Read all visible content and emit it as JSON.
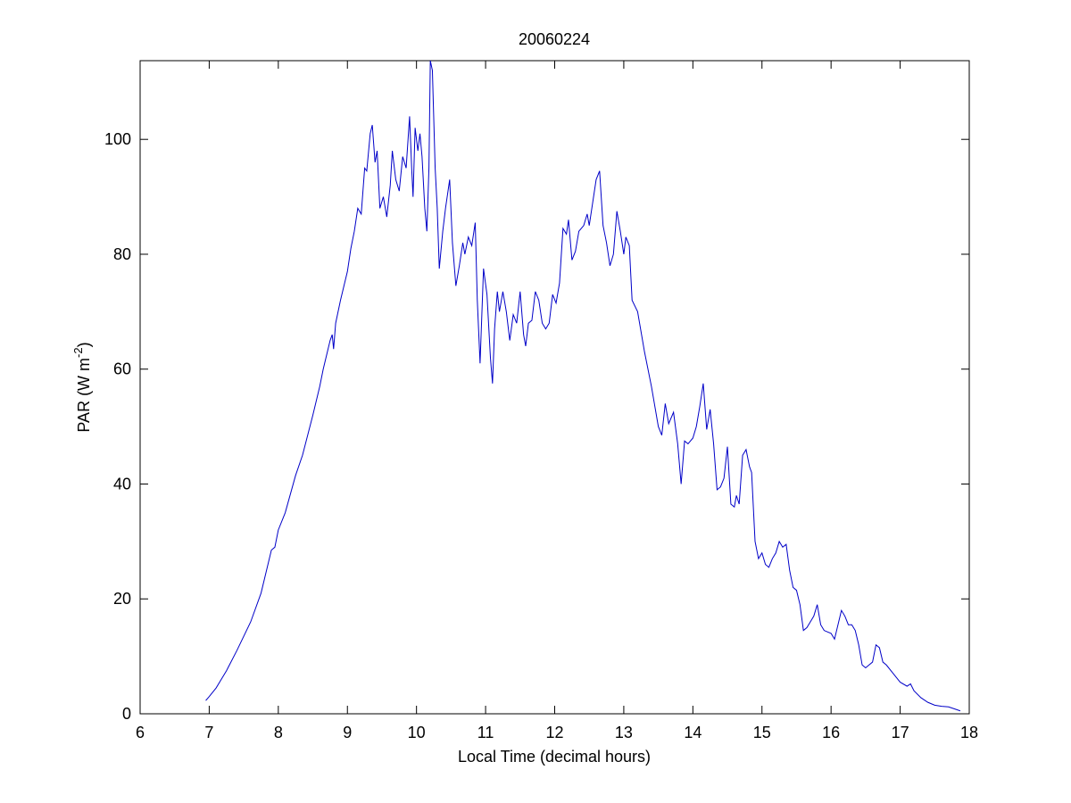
{
  "chart_data": {
    "type": "line",
    "title": "20060224",
    "xlabel": "Local Time (decimal hours)",
    "ylabel": [
      "PAR (W m",
      "-2",
      ")"
    ],
    "color": "#0000c8",
    "xlim": [
      6,
      18
    ],
    "xticks": [
      6,
      7,
      8,
      9,
      10,
      11,
      12,
      13,
      14,
      15,
      16,
      17,
      18
    ],
    "ylim": [
      0,
      113.7
    ],
    "yticks": [
      0,
      20,
      40,
      60,
      80,
      100
    ],
    "grid": false,
    "x": [
      6.95,
      7.0,
      7.1,
      7.25,
      7.4,
      7.5,
      7.6,
      7.75,
      7.9,
      7.95,
      8.0,
      8.1,
      8.25,
      8.35,
      8.5,
      8.6,
      8.65,
      8.75,
      8.78,
      8.8,
      8.83,
      8.9,
      9.0,
      9.05,
      9.1,
      9.15,
      9.2,
      9.25,
      9.28,
      9.33,
      9.36,
      9.4,
      9.43,
      9.47,
      9.52,
      9.57,
      9.62,
      9.65,
      9.7,
      9.75,
      9.8,
      9.85,
      9.9,
      9.93,
      9.95,
      9.98,
      10.02,
      10.05,
      10.08,
      10.12,
      10.15,
      10.18,
      10.2,
      10.23,
      10.27,
      10.3,
      10.33,
      10.38,
      10.42,
      10.48,
      10.52,
      10.57,
      10.62,
      10.67,
      10.7,
      10.75,
      10.8,
      10.85,
      10.88,
      10.92,
      10.97,
      11.02,
      11.07,
      11.1,
      11.13,
      11.17,
      11.2,
      11.25,
      11.3,
      11.35,
      11.4,
      11.45,
      11.5,
      11.55,
      11.58,
      11.62,
      11.67,
      11.72,
      11.77,
      11.82,
      11.87,
      11.92,
      11.97,
      12.02,
      12.07,
      12.12,
      12.17,
      12.2,
      12.25,
      12.3,
      12.35,
      12.42,
      12.47,
      12.5,
      12.55,
      12.6,
      12.65,
      12.7,
      12.75,
      12.8,
      12.85,
      12.9,
      12.95,
      13.0,
      13.03,
      13.08,
      13.12,
      13.2,
      13.3,
      13.4,
      13.5,
      13.55,
      13.6,
      13.65,
      13.72,
      13.78,
      13.83,
      13.88,
      13.93,
      14.0,
      14.05,
      14.1,
      14.15,
      14.2,
      14.25,
      14.3,
      14.35,
      14.4,
      14.45,
      14.5,
      14.55,
      14.6,
      14.63,
      14.67,
      14.72,
      14.77,
      14.82,
      14.85,
      14.9,
      14.95,
      15.0,
      15.05,
      15.1,
      15.15,
      15.2,
      15.25,
      15.3,
      15.35,
      15.4,
      15.45,
      15.5,
      15.55,
      15.6,
      15.65,
      15.7,
      15.75,
      15.8,
      15.85,
      15.9,
      16.0,
      16.05,
      16.1,
      16.15,
      16.2,
      16.25,
      16.3,
      16.35,
      16.4,
      16.45,
      16.5,
      16.55,
      16.6,
      16.65,
      16.7,
      16.75,
      16.8,
      16.9,
      17.0,
      17.1,
      17.15,
      17.2,
      17.3,
      17.4,
      17.5,
      17.6,
      17.7,
      17.8,
      17.87
    ],
    "values": [
      2.3,
      3,
      4.5,
      7.5,
      11,
      13.5,
      16,
      21,
      28.5,
      29,
      32,
      35,
      41.5,
      45,
      52,
      57,
      60,
      65,
      66,
      63.5,
      68,
      72,
      77,
      81,
      84,
      88,
      87,
      95,
      94.5,
      101,
      102.5,
      96,
      98,
      88,
      90,
      86.5,
      92,
      98,
      93,
      91,
      97,
      95,
      104,
      95,
      90,
      102,
      98,
      101,
      97,
      88,
      84,
      95,
      113.7,
      112,
      95,
      88,
      77.5,
      84,
      88,
      93,
      82,
      74.5,
      78,
      82,
      80,
      83,
      81.5,
      85.5,
      72,
      61,
      77.5,
      73,
      62,
      57.5,
      67,
      73.5,
      70,
      73.5,
      70,
      65,
      69.5,
      68,
      73.5,
      66,
      64,
      68,
      68.5,
      73.5,
      72,
      68,
      67,
      68,
      73,
      71.5,
      75,
      84.5,
      83.5,
      86,
      79,
      80.5,
      84,
      85,
      87,
      85,
      89,
      93,
      94.5,
      85,
      82,
      78,
      80,
      87.5,
      84,
      80,
      83,
      81.5,
      72,
      70,
      63,
      57,
      50,
      48.5,
      54,
      50.5,
      52.5,
      47,
      40,
      47.5,
      47,
      48,
      50,
      53.5,
      57.5,
      49.5,
      53,
      47,
      39,
      39.5,
      41,
      46.5,
      36.5,
      36,
      38,
      36.5,
      45,
      46,
      43,
      42,
      30,
      27,
      28,
      26,
      25.5,
      27,
      28,
      30,
      29,
      29.5,
      25,
      22,
      21.5,
      19,
      14.5,
      15,
      16,
      17,
      19,
      15.5,
      14.5,
      14,
      13,
      15.5,
      18,
      17,
      15.5,
      15.5,
      14.5,
      12,
      8.5,
      8,
      8.5,
      9,
      12,
      11.5,
      9,
      8.5,
      7,
      5.5,
      4.8,
      5.2,
      4,
      2.8,
      2,
      1.5,
      1.3,
      1.2,
      0.8,
      0.5
    ]
  }
}
